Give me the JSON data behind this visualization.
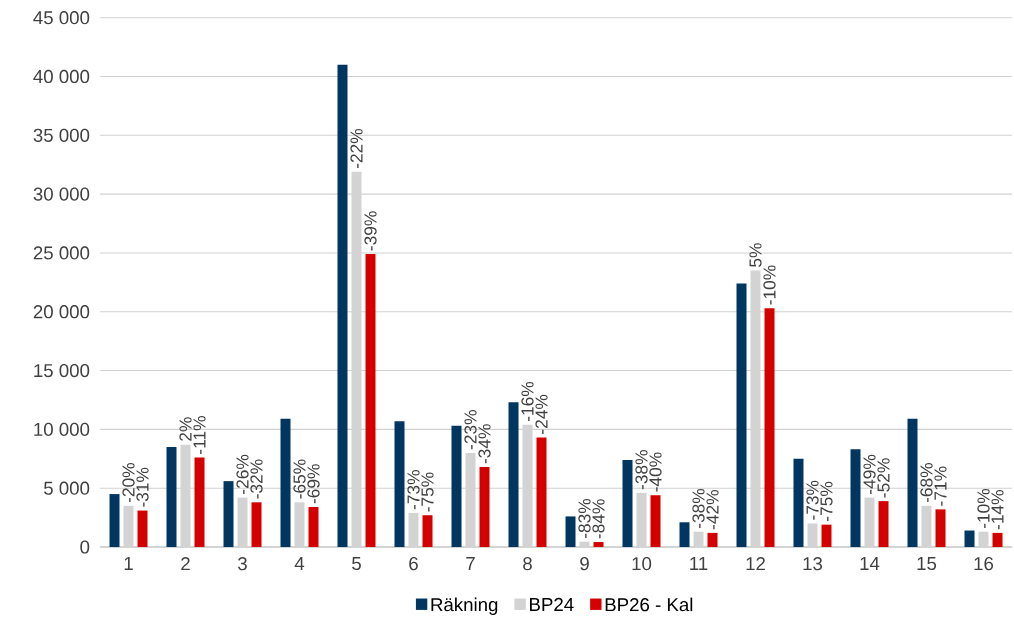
{
  "chart_data": {
    "type": "bar",
    "categories": [
      "1",
      "2",
      "3",
      "4",
      "5",
      "6",
      "7",
      "8",
      "9",
      "10",
      "11",
      "12",
      "13",
      "14",
      "15",
      "16"
    ],
    "series": [
      {
        "name": "Räkning",
        "color": "#003660",
        "values": [
          4500,
          8500,
          5600,
          10900,
          41000,
          10700,
          10300,
          12300,
          2600,
          7400,
          2100,
          22400,
          7500,
          8300,
          10900,
          1400
        ]
      },
      {
        "name": "BP24",
        "color": "#d3d3d3",
        "values": [
          3500,
          8700,
          4200,
          3800,
          31900,
          2900,
          8000,
          10400,
          450,
          4600,
          1300,
          23500,
          2000,
          4200,
          3500,
          1300
        ]
      },
      {
        "name": "BP26 - Kal",
        "color": "#d40000",
        "values": [
          3100,
          7600,
          3800,
          3400,
          24900,
          2700,
          6800,
          9300,
          420,
          4400,
          1200,
          20300,
          1900,
          3900,
          3200,
          1200
        ]
      }
    ],
    "annotations": [
      {
        "text": "-20%",
        "x": "1",
        "y": 3500
      },
      {
        "text": "-31%",
        "x": "1",
        "y": 3100
      },
      {
        "text": "2%",
        "x": "2",
        "y": 8700
      },
      {
        "text": "-11%",
        "x": "2",
        "y": 7600
      },
      {
        "text": "-26%",
        "x": "3",
        "y": 4200
      },
      {
        "text": "-32%",
        "x": "3",
        "y": 3800
      },
      {
        "text": "-65%",
        "x": "4",
        "y": 3800
      },
      {
        "text": "-69%",
        "x": "4",
        "y": 3400
      },
      {
        "text": "-22%",
        "x": "5",
        "y": 31900
      },
      {
        "text": "-39%",
        "x": "5",
        "y": 24900
      },
      {
        "text": "-73%",
        "x": "6",
        "y": 2900
      },
      {
        "text": "-75%",
        "x": "6",
        "y": 2700
      },
      {
        "text": "-23%",
        "x": "7",
        "y": 8000
      },
      {
        "text": "-34%",
        "x": "7",
        "y": 6800
      },
      {
        "text": "-16%",
        "x": "8",
        "y": 10400
      },
      {
        "text": "-24%",
        "x": "8",
        "y": 9300
      },
      {
        "text": "-83%",
        "x": "9",
        "y": 450
      },
      {
        "text": "-84%",
        "x": "9",
        "y": 420
      },
      {
        "text": "-38%",
        "x": "10",
        "y": 4600
      },
      {
        "text": "-40%",
        "x": "10",
        "y": 4400
      },
      {
        "text": "-38%",
        "x": "11",
        "y": 1300
      },
      {
        "text": "-42%",
        "x": "11",
        "y": 1200
      },
      {
        "text": "5%",
        "x": "12",
        "y": 23500
      },
      {
        "text": "-10%",
        "x": "12",
        "y": 20300
      },
      {
        "text": "-73%",
        "x": "13",
        "y": 2000
      },
      {
        "text": "-75%",
        "x": "13",
        "y": 1900
      },
      {
        "text": "-49%",
        "x": "14",
        "y": 4200
      },
      {
        "text": "-52%",
        "x": "14",
        "y": 3900
      },
      {
        "text": "-68%",
        "x": "15",
        "y": 3500
      },
      {
        "text": "-71%",
        "x": "15",
        "y": 3200
      },
      {
        "text": "-10%",
        "x": "16",
        "y": 1300
      },
      {
        "text": "-14%",
        "x": "16",
        "y": 1200
      }
    ],
    "ylim": [
      0,
      45000
    ],
    "yticks": [
      0,
      {
        "value": 5000,
        "label": "5 000"
      },
      {
        "value": 10000,
        "label": "10 000"
      },
      {
        "value": 15000,
        "label": "15 000"
      },
      {
        "value": 20000,
        "label": "20 000"
      },
      {
        "value": 25000,
        "label": "25 000"
      },
      {
        "value": 30000,
        "label": "30 000"
      },
      {
        "value": 35000,
        "label": "35 000"
      },
      {
        "value": 40000,
        "label": "40 000"
      },
      {
        "value": 45000,
        "label": "45 000"
      }
    ],
    "grid": "y",
    "legend": "bottom"
  }
}
